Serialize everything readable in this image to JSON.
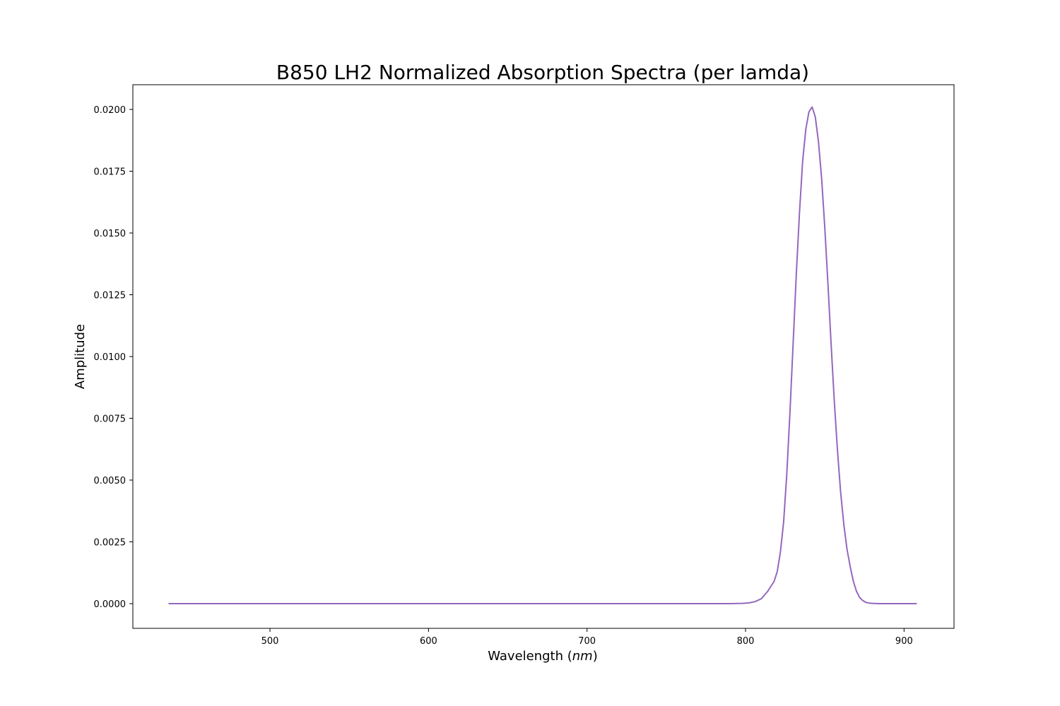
{
  "chart_data": {
    "type": "line",
    "title": "B850 LH2 Normalized Absorption Spectra (per lamda)",
    "xlabel_prefix": "Wavelength (",
    "xlabel_unit": "nm",
    "xlabel_suffix": ")",
    "ylabel": "Amplitude",
    "xlim": [
      413.5,
      931.5
    ],
    "ylim": [
      -0.001,
      0.021
    ],
    "xticks": [
      500,
      600,
      700,
      800,
      900
    ],
    "xtick_labels": [
      "500",
      "600",
      "700",
      "800",
      "900"
    ],
    "yticks": [
      0.0,
      0.0025,
      0.005,
      0.0075,
      0.01,
      0.0125,
      0.015,
      0.0175,
      0.02
    ],
    "ytick_labels": [
      "0.0000",
      "0.0025",
      "0.0050",
      "0.0075",
      "0.0100",
      "0.0125",
      "0.0150",
      "0.0175",
      "0.0200"
    ],
    "grid": false,
    "series": [
      {
        "color": "#9467bd",
        "x": [
          436,
          500,
          600,
          700,
          790,
          798,
          802,
          806,
          810,
          814,
          818,
          820,
          822,
          824,
          826,
          828,
          830,
          832,
          834,
          836,
          838,
          840,
          842,
          844,
          846,
          848,
          850,
          852,
          854,
          856,
          858,
          860,
          862,
          864,
          866,
          868,
          870,
          872,
          874,
          876,
          878,
          880,
          884,
          888,
          892,
          896,
          900,
          908
        ],
        "y": [
          0.0,
          0.0,
          0.0,
          0.0,
          0.0,
          1e-05,
          3e-05,
          8e-05,
          0.0002,
          0.0005,
          0.0009,
          0.0013,
          0.0021,
          0.0033,
          0.0052,
          0.0077,
          0.0105,
          0.0133,
          0.0158,
          0.0179,
          0.0192,
          0.0199,
          0.0201,
          0.0197,
          0.0187,
          0.0172,
          0.0152,
          0.0129,
          0.0105,
          0.0082,
          0.0062,
          0.0045,
          0.0032,
          0.0022,
          0.0015,
          0.0009,
          0.0005,
          0.00025,
          0.00012,
          5e-05,
          2e-05,
          1e-05,
          0.0,
          0.0,
          0.0,
          0.0,
          0.0,
          0.0
        ]
      }
    ]
  }
}
